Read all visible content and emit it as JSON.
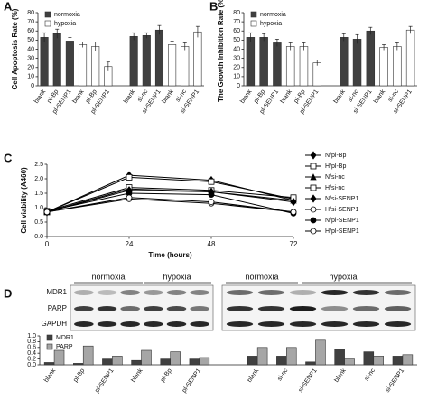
{
  "chart_data": [
    {
      "type": "bar",
      "panel": "A",
      "ylabel": "Cell Apoptosis Rate (%)",
      "categories": [
        "blank",
        "pl-Bp",
        "pl-SENP1",
        "blank",
        "pl-Bp",
        "pl-SENP1",
        "blank",
        "si-nc",
        "si-SENP1",
        "blank",
        "si-nc",
        "si-SENP1"
      ],
      "series": [
        {
          "name": "normoxia",
          "color": "#404040",
          "values": [
            53,
            57,
            49,
            null,
            null,
            null,
            54,
            55,
            61,
            null,
            null,
            null
          ],
          "errors": [
            5,
            5,
            4,
            null,
            null,
            null,
            4,
            3,
            5,
            null,
            null,
            null
          ]
        },
        {
          "name": "hypoxia",
          "color": "#ffffff",
          "values": [
            null,
            null,
            null,
            45,
            43,
            21,
            null,
            null,
            null,
            45,
            43,
            59
          ],
          "errors": [
            null,
            null,
            null,
            3,
            5,
            5,
            null,
            null,
            null,
            4,
            4,
            6
          ]
        }
      ],
      "ylim": [
        0,
        80
      ],
      "yticks": [
        0,
        10,
        20,
        30,
        40,
        50,
        60,
        70,
        80
      ],
      "legend": "upper left"
    },
    {
      "type": "bar",
      "panel": "B",
      "ylabel": "The Growth Inhibition Rate (%)",
      "categories": [
        "blank",
        "pl-Bp",
        "pl-SENP1",
        "blank",
        "pl-Bp",
        "pl-SENP1",
        "blank",
        "si-nc",
        "si-SENP1",
        "blank",
        "si-nc",
        "si-SENP1"
      ],
      "series": [
        {
          "name": "normoxia",
          "color": "#404040",
          "values": [
            53,
            53,
            47,
            null,
            null,
            null,
            53,
            51,
            60,
            null,
            null,
            null
          ],
          "errors": [
            5,
            4,
            4,
            null,
            null,
            null,
            4,
            5,
            4,
            null,
            null,
            null
          ]
        },
        {
          "name": "hypoxia",
          "color": "#ffffff",
          "values": [
            null,
            null,
            null,
            43,
            43,
            25,
            null,
            null,
            null,
            42,
            43,
            61
          ],
          "errors": [
            null,
            null,
            null,
            4,
            4,
            3,
            null,
            null,
            null,
            3,
            4,
            4
          ]
        }
      ],
      "ylim": [
        0,
        80
      ],
      "yticks": [
        0,
        10,
        20,
        30,
        40,
        50,
        60,
        70,
        80
      ],
      "legend": "upper left"
    },
    {
      "type": "line",
      "panel": "C",
      "xlabel": "Time (hours)",
      "ylabel": "Cell viability (A460)",
      "x": [
        0,
        24,
        48,
        72
      ],
      "series": [
        {
          "name": "N/pl-Bp",
          "color": "#000000",
          "marker": "diamond",
          "filled": true,
          "values": [
            0.85,
            2.12,
            1.95,
            1.25
          ]
        },
        {
          "name": "H/pl-Bp",
          "color": "#000000",
          "marker": "square",
          "filled": false,
          "values": [
            0.85,
            2.05,
            1.9,
            1.3
          ]
        },
        {
          "name": "N/si-nc",
          "color": "#000000",
          "marker": "triangle",
          "filled": true,
          "values": [
            0.85,
            1.65,
            1.55,
            1.25
          ]
        },
        {
          "name": "H/si-nc",
          "color": "#000000",
          "marker": "square",
          "filled": false,
          "values": [
            0.88,
            1.7,
            1.6,
            1.35
          ]
        },
        {
          "name": "N/si-SENP1",
          "color": "#000000",
          "marker": "diamond",
          "filled": true,
          "values": [
            0.85,
            1.6,
            1.55,
            1.2
          ]
        },
        {
          "name": "H/si-SENP1",
          "color": "#000000",
          "marker": "circle",
          "filled": false,
          "values": [
            0.85,
            1.3,
            1.15,
            0.85
          ]
        },
        {
          "name": "N/pl-SENP1",
          "color": "#000000",
          "marker": "circle",
          "filled": true,
          "values": [
            0.88,
            1.5,
            1.45,
            0.8
          ]
        },
        {
          "name": "H/pl-SENP1",
          "color": "#000000",
          "marker": "circle",
          "filled": false,
          "values": [
            0.85,
            1.35,
            1.2,
            0.85
          ]
        }
      ],
      "xlim": [
        0,
        72
      ],
      "xticks": [
        0,
        24,
        48,
        72
      ],
      "ylim": [
        0,
        2.5
      ],
      "yticks": [
        {
          "value": 0,
          "label": "0.0"
        },
        {
          "value": 0.5,
          "label": "0.5"
        },
        {
          "value": 1,
          "label": "1.0"
        },
        {
          "value": 1.5,
          "label": "1.5"
        },
        {
          "value": 2,
          "label": "2.0"
        },
        {
          "value": 2.5,
          "label": "2.5"
        }
      ],
      "legend": "right"
    },
    {
      "type": "bar",
      "panel": "D",
      "categories": [
        "blank",
        "pl-Bp",
        "pl-SENP1",
        "blank",
        "pl-Bp",
        "pl-SENP1",
        "blank",
        "si-nc",
        "si-SENP1",
        "blank",
        "si-nc",
        "si-SENP1"
      ],
      "series": [
        {
          "name": "MDR1",
          "color": "#404040",
          "values": [
            0.08,
            0.05,
            0.2,
            0.15,
            0.2,
            0.2,
            0.3,
            0.3,
            0.1,
            0.55,
            0.45,
            0.3
          ]
        },
        {
          "name": "PARP",
          "color": "#a6a6a6",
          "values": [
            0.5,
            0.65,
            0.3,
            0.5,
            0.45,
            0.25,
            0.6,
            0.6,
            0.85,
            0.2,
            0.3,
            0.35
          ]
        }
      ],
      "ylim": [
        0,
        1
      ],
      "yticks": [
        {
          "value": 0,
          "label": "0.0"
        },
        {
          "value": 0.2,
          "label": "0.2"
        },
        {
          "value": 0.4,
          "label": "0.4"
        },
        {
          "value": 0.6,
          "label": "0.6"
        },
        {
          "value": 0.8,
          "label": "0.8"
        },
        {
          "value": 1,
          "label": "1.0"
        }
      ],
      "legend": "upper left"
    }
  ],
  "blot": {
    "groups": [
      "normoxia",
      "hypoxia",
      "normoxia",
      "hypoxia"
    ],
    "rows": [
      "MDR1",
      "PARP",
      "GAPDH"
    ]
  }
}
